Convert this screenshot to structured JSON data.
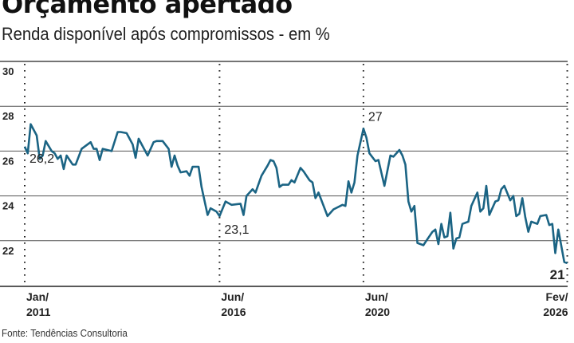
{
  "title": "Orçamento apertado",
  "subtitle": "Renda disponível após compromissos - em %",
  "source": "Fonte: Tendências Consultoria",
  "colors": {
    "line": "#1b6484",
    "grid": "#333333"
  },
  "chart_data": {
    "type": "line",
    "title": "Orçamento apertado",
    "subtitle": "Renda disponível após compromissos - em %",
    "ylim": [
      21,
      30
    ],
    "yticks": [
      30,
      28,
      26,
      24,
      22
    ],
    "xlim": [
      "2011-01",
      "2026-02"
    ],
    "xticks": [
      {
        "date": "2011-01",
        "line1": "Jan/",
        "line2": "2011"
      },
      {
        "date": "2016-06",
        "line1": "Jun/",
        "line2": "2016"
      },
      {
        "date": "2020-06",
        "line1": "Jun/",
        "line2": "2020"
      },
      {
        "date": "2026-02",
        "line1": "Fev/",
        "line2": "2026"
      }
    ],
    "grid": true,
    "annotations": [
      {
        "date": "2011-01",
        "value": 26.2,
        "text": "26,2",
        "bold": false
      },
      {
        "date": "2016-06",
        "value": 23.1,
        "text": "23,1",
        "bold": false
      },
      {
        "date": "2020-06",
        "value": 27,
        "text": "27",
        "bold": false
      },
      {
        "date": "2026-02",
        "value": 21,
        "text": "21",
        "bold": true
      }
    ],
    "series": [
      {
        "x": [
          "2011-01",
          "2011-02",
          "2011-03",
          "2011-05",
          "2011-06",
          "2011-07",
          "2011-08",
          "2011-10",
          "2011-11",
          "2011-12",
          "2012-01",
          "2012-02",
          "2012-03",
          "2012-05",
          "2012-06",
          "2012-08",
          "2012-11",
          "2012-12",
          "2013-01",
          "2013-02",
          "2013-03",
          "2013-06",
          "2013-08",
          "2013-09",
          "2013-11",
          "2014-01",
          "2014-02",
          "2014-03",
          "2014-06",
          "2014-08",
          "2014-09",
          "2014-11",
          "2015-01",
          "2015-02",
          "2015-03",
          "2015-04",
          "2015-05",
          "2015-07",
          "2015-08",
          "2015-09",
          "2015-11",
          "2015-12",
          "2016-02",
          "2016-03",
          "2016-05",
          "2016-06",
          "2016-08",
          "2016-10",
          "2017-01",
          "2017-02",
          "2017-03",
          "2017-05",
          "2017-06",
          "2017-08",
          "2017-10",
          "2017-11",
          "2017-12",
          "2018-01",
          "2018-02",
          "2018-03",
          "2018-05",
          "2018-06",
          "2018-07",
          "2018-09",
          "2018-10",
          "2018-12",
          "2019-01",
          "2019-02",
          "2019-03",
          "2019-06",
          "2019-08",
          "2019-11",
          "2019-12",
          "2020-01",
          "2020-02",
          "2020-03",
          "2020-04",
          "2020-06",
          "2020-07",
          "2020-08",
          "2020-10",
          "2020-11",
          "2021-01",
          "2021-03",
          "2021-04",
          "2021-06",
          "2021-07",
          "2021-08",
          "2021-09",
          "2021-10",
          "2021-11",
          "2021-12",
          "2022-02",
          "2022-03",
          "2022-05",
          "2022-06",
          "2022-07",
          "2022-08",
          "2022-09",
          "2022-10",
          "2022-11",
          "2022-12",
          "2023-01",
          "2023-02",
          "2023-03",
          "2023-05",
          "2023-06",
          "2023-08",
          "2023-09",
          "2023-10",
          "2023-11",
          "2023-12",
          "2024-02",
          "2024-03",
          "2024-04",
          "2024-05",
          "2024-07",
          "2024-08",
          "2024-09",
          "2024-10",
          "2024-11",
          "2024-12",
          "2025-01",
          "2025-02",
          "2025-04",
          "2025-05",
          "2025-07",
          "2025-08",
          "2025-09",
          "2025-10",
          "2025-11",
          "2026-01",
          "2026-02"
        ],
        "values": [
          26.2,
          25.9,
          27.2,
          26.7,
          25.65,
          25.8,
          26.45,
          26.0,
          25.9,
          25.65,
          25.8,
          25.2,
          25.8,
          25.4,
          25.4,
          26.1,
          26.4,
          26.1,
          26.1,
          25.6,
          26.1,
          26.0,
          26.85,
          26.85,
          26.8,
          26.3,
          25.7,
          26.55,
          25.8,
          26.4,
          26.45,
          26.45,
          26.1,
          25.3,
          25.8,
          25.35,
          25.05,
          25.1,
          24.9,
          25.3,
          25.3,
          24.4,
          23.15,
          23.45,
          23.3,
          23.1,
          23.75,
          23.6,
          23.65,
          23.15,
          24.0,
          24.3,
          24.15,
          24.9,
          25.35,
          25.6,
          25.55,
          25.25,
          24.4,
          24.5,
          24.5,
          24.7,
          24.6,
          25.25,
          25.1,
          24.7,
          24.6,
          23.9,
          24.15,
          23.1,
          23.4,
          23.6,
          23.55,
          24.65,
          24.15,
          24.6,
          25.8,
          27.0,
          26.6,
          25.9,
          25.55,
          25.6,
          24.45,
          25.8,
          25.75,
          26.05,
          25.8,
          25.4,
          23.75,
          23.3,
          23.55,
          21.9,
          21.8,
          22.0,
          22.4,
          22.5,
          21.85,
          22.75,
          22.15,
          22.2,
          23.25,
          21.65,
          22.1,
          22.15,
          22.75,
          22.85,
          23.55,
          24.15,
          23.3,
          23.45,
          24.45,
          23.15,
          23.75,
          23.8,
          24.3,
          24.45,
          23.8,
          24.0,
          23.1,
          23.2,
          23.9,
          23.05,
          22.4,
          22.85,
          22.75,
          23.1,
          23.15,
          22.7,
          22.75,
          21.45,
          22.5,
          21.05,
          21.0
        ]
      }
    ]
  }
}
